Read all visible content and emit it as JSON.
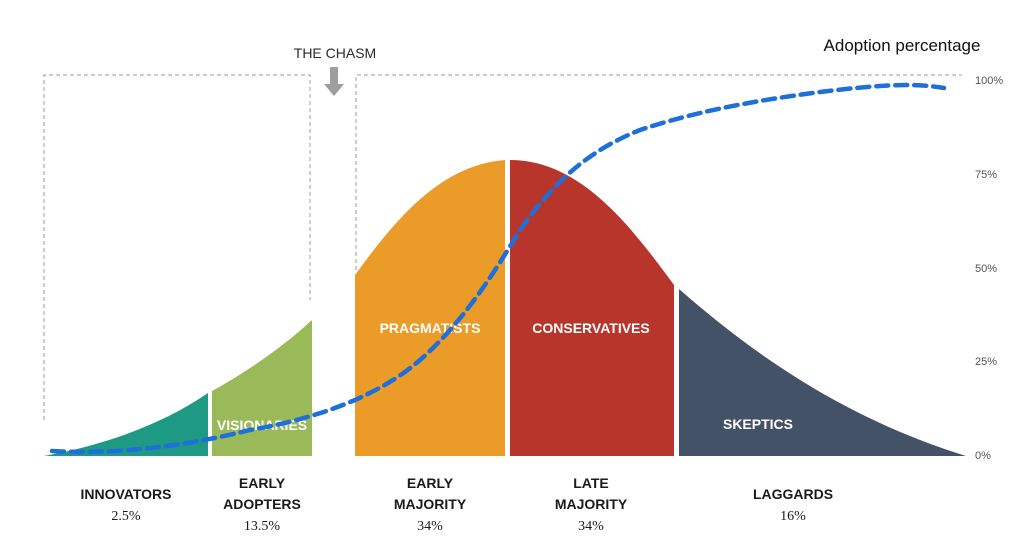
{
  "chasm_label": "THE CHASM",
  "y_axis_title": "Adoption percentage",
  "y_ticks": [
    "100%",
    "75%",
    "50%",
    "25%",
    "0%"
  ],
  "segments": [
    {
      "inner_label": "",
      "name_lines": [
        "INNOVATORS"
      ],
      "share": "2.5%",
      "color": "#1e9a84"
    },
    {
      "inner_label": "VISIONARIES",
      "name_lines": [
        "EARLY",
        "ADOPTERS"
      ],
      "share": "13.5%",
      "color": "#9aba5a"
    },
    {
      "inner_label": "PRAGMATISTS",
      "name_lines": [
        "EARLY",
        "MAJORITY"
      ],
      "share": "34%",
      "color": "#eb9b27"
    },
    {
      "inner_label": "CONSERVATIVES",
      "name_lines": [
        "LATE",
        "MAJORITY"
      ],
      "share": "34%",
      "color": "#b8352c"
    },
    {
      "inner_label": "SKEPTICS",
      "name_lines": [
        "LAGGARDS"
      ],
      "share": "16%",
      "color": "#435267"
    }
  ],
  "curve_color": "#1f6fd8"
}
